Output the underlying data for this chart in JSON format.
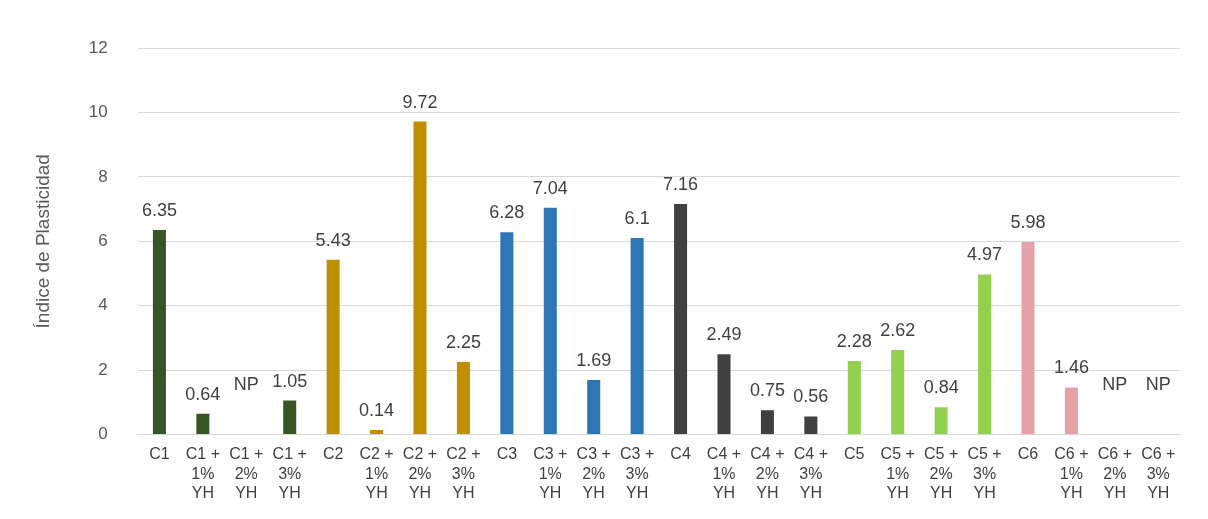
{
  "chart_data": {
    "type": "bar",
    "ylabel": "Índice de Plasticidad",
    "categories": [
      "C1",
      "C1 + 1% YH",
      "C1 + 2% YH",
      "C1 + 3% YH",
      "C2",
      "C2 + 1% YH",
      "C2 + 2% YH",
      "C2 + 3% YH",
      "C3",
      "C3 + 1% YH",
      "C3 + 2% YH",
      "C3 + 3% YH",
      "C4",
      "C4 + 1% YH",
      "C4 + 2% YH",
      "C4 + 3% YH",
      "C5",
      "C5 + 1% YH",
      "C5 + 2% YH",
      "C5 + 3% YH",
      "C6",
      "C6 + 1% YH",
      "C6 + 2% YH",
      "C6 + 3% YH"
    ],
    "values": [
      6.35,
      0.64,
      null,
      1.05,
      5.43,
      0.14,
      9.72,
      2.25,
      6.28,
      7.04,
      1.69,
      6.1,
      7.16,
      2.49,
      0.75,
      0.56,
      2.28,
      2.62,
      0.84,
      4.97,
      5.98,
      1.46,
      null,
      null
    ],
    "value_labels": [
      "6.35",
      "0.64",
      "NP",
      "1.05",
      "5.43",
      "0.14",
      "9.72",
      "2.25",
      "6.28",
      "7.04",
      "1.69",
      "6.1",
      "7.16",
      "2.49",
      "0.75",
      "0.56",
      "2.28",
      "2.62",
      "0.84",
      "4.97",
      "5.98",
      "1.46",
      "NP",
      "NP"
    ],
    "colors": [
      "#375623",
      "#375623",
      "#375623",
      "#375623",
      "#bf8f00",
      "#bf8f00",
      "#bf8f00",
      "#bf8f00",
      "#2e75b6",
      "#2e75b6",
      "#2e75b6",
      "#2e75b6",
      "#404040",
      "#404040",
      "#404040",
      "#404040",
      "#92d050",
      "#92d050",
      "#92d050",
      "#92d050",
      "#e6a1a8",
      "#e6a1a8",
      "#e6a1a8",
      "#e6a1a8"
    ],
    "ylim": [
      0,
      12
    ],
    "yticks": [
      0,
      2,
      4,
      6,
      8,
      10,
      12
    ],
    "grid": "y",
    "legend": false
  }
}
